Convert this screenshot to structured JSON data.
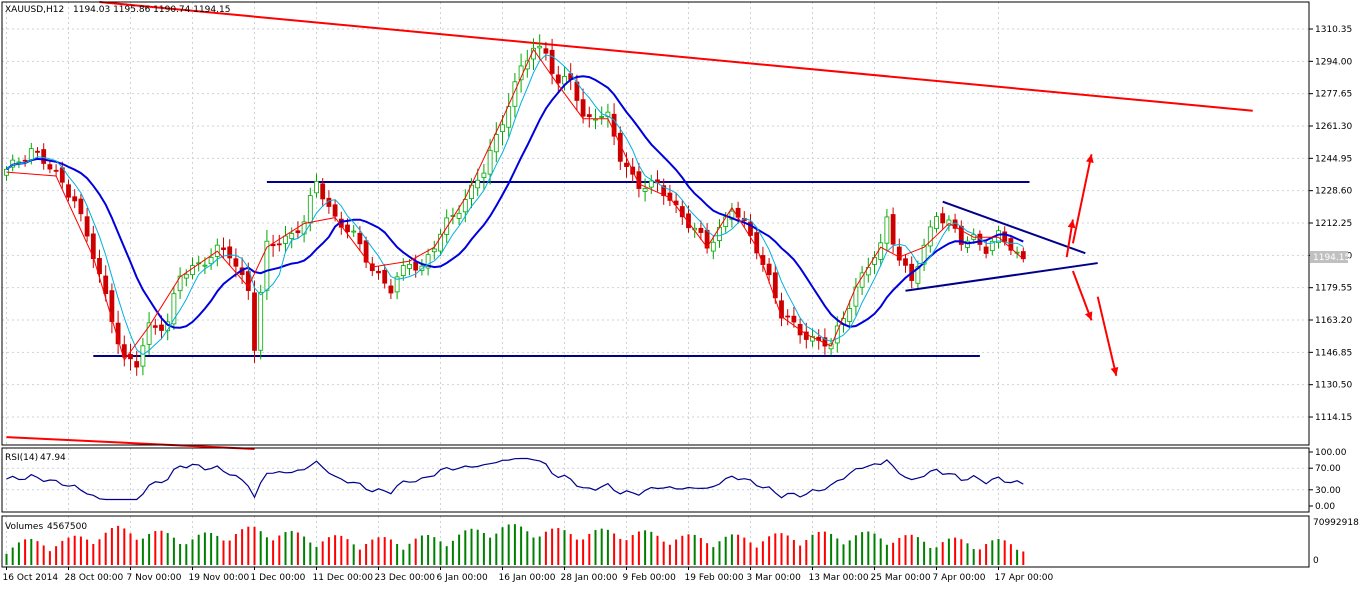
{
  "chart_data": {
    "type": "candlestick",
    "symbol": "XAUUSD,H12",
    "ohlc_text": "1194.03 1195.86 1190.74 1194.15",
    "last_price": "1194.15",
    "price_axis": {
      "min": 1100,
      "max": 1324,
      "ticks": [
        "1310.35",
        "1294.00",
        "1277.65",
        "1261.30",
        "1244.95",
        "1228.60",
        "1212.25",
        "1195.90",
        "1179.55",
        "1163.20",
        "1146.85",
        "1130.50",
        "1114.15"
      ],
      "tick_values": [
        1310.35,
        1294.0,
        1277.65,
        1261.3,
        1244.95,
        1228.6,
        1212.25,
        1195.9,
        1179.55,
        1163.2,
        1146.85,
        1130.5,
        1114.15
      ]
    },
    "time_axis": {
      "labels": [
        "16 Oct 2014",
        "28 Oct 00:00",
        "7 Nov 00:00",
        "19 Nov 00:00",
        "1 Dec 00:00",
        "11 Dec 00:00",
        "23 Dec 00:00",
        "6 Jan 00:00",
        "16 Jan 00:00",
        "28 Jan 00:00",
        "9 Feb 00:00",
        "19 Feb 00:00",
        "3 Mar 00:00",
        "13 Mar 00:00",
        "25 Mar 00:00",
        "7 Apr 00:00",
        "17 Apr 00:00"
      ],
      "label_bar_index": [
        0,
        10,
        20,
        30,
        40,
        50,
        60,
        70,
        80,
        90,
        100,
        110,
        120,
        130,
        140,
        150,
        160
      ]
    },
    "price_series": {
      "name": "close",
      "anchors": [
        [
          0,
          1238
        ],
        [
          4,
          1250
        ],
        [
          8,
          1236
        ],
        [
          11,
          1225
        ],
        [
          14,
          1195
        ],
        [
          17,
          1165
        ],
        [
          19,
          1143
        ],
        [
          21,
          1140
        ],
        [
          23,
          1160
        ],
        [
          26,
          1162
        ],
        [
          28,
          1185
        ],
        [
          31,
          1192
        ],
        [
          34,
          1198
        ],
        [
          36,
          1196
        ],
        [
          39,
          1180
        ],
        [
          40,
          1150
        ],
        [
          42,
          1200
        ],
        [
          45,
          1205
        ],
        [
          48,
          1212
        ],
        [
          50,
          1233
        ],
        [
          53,
          1215
        ],
        [
          56,
          1205
        ],
        [
          59,
          1190
        ],
        [
          62,
          1178
        ],
        [
          65,
          1193
        ],
        [
          67,
          1190
        ],
        [
          69,
          1200
        ],
        [
          71,
          1212
        ],
        [
          74,
          1225
        ],
        [
          77,
          1238
        ],
        [
          80,
          1265
        ],
        [
          83,
          1290
        ],
        [
          85,
          1300
        ],
        [
          87,
          1300
        ],
        [
          89,
          1282
        ],
        [
          91,
          1285
        ],
        [
          93,
          1265
        ],
        [
          95,
          1268
        ],
        [
          97,
          1265
        ],
        [
          99,
          1245
        ],
        [
          102,
          1232
        ],
        [
          105,
          1230
        ],
        [
          107,
          1225
        ],
        [
          110,
          1212
        ],
        [
          113,
          1200
        ],
        [
          115,
          1210
        ],
        [
          117,
          1220
        ],
        [
          119,
          1210
        ],
        [
          121,
          1200
        ],
        [
          123,
          1185
        ],
        [
          125,
          1165
        ],
        [
          127,
          1160
        ],
        [
          129,
          1156
        ],
        [
          131,
          1152
        ],
        [
          133,
          1150
        ],
        [
          135,
          1165
        ],
        [
          137,
          1180
        ],
        [
          139,
          1190
        ],
        [
          141,
          1200
        ],
        [
          142,
          1215
        ],
        [
          144,
          1195
        ],
        [
          146,
          1182
        ],
        [
          148,
          1200
        ],
        [
          150,
          1218
        ],
        [
          152,
          1212
        ],
        [
          154,
          1202
        ],
        [
          156,
          1205
        ],
        [
          158,
          1200
        ],
        [
          160,
          1205
        ],
        [
          162,
          1200
        ],
        [
          164,
          1194
        ]
      ]
    },
    "volatility": [
      [
        0,
        4
      ],
      [
        10,
        5
      ],
      [
        18,
        9
      ],
      [
        30,
        6
      ],
      [
        40,
        9
      ],
      [
        50,
        6
      ],
      [
        60,
        5
      ],
      [
        70,
        6
      ],
      [
        80,
        10
      ],
      [
        90,
        8
      ],
      [
        100,
        8
      ],
      [
        110,
        6
      ],
      [
        120,
        6
      ],
      [
        130,
        7
      ],
      [
        140,
        7
      ],
      [
        150,
        5
      ],
      [
        164,
        4
      ]
    ],
    "indicators": [
      {
        "name": "moving-average",
        "color": "#0000dd",
        "period": 13,
        "style": "thick"
      },
      {
        "name": "moving-average",
        "color": "#00b0e0",
        "period": 5,
        "style": "thin"
      },
      {
        "name": "zigzag",
        "color": "#ff0000"
      }
    ],
    "trend_lines": [
      {
        "name": "upper-red-trendline",
        "color": "#ff0000",
        "points": [
          [
            15,
            1324
          ],
          [
            201,
            1269
          ]
        ]
      },
      {
        "name": "lower-red-trendline",
        "color": "#ff0000",
        "points": [
          [
            0,
            1104
          ],
          [
            40,
            1098
          ]
        ]
      },
      {
        "name": "resistance-line",
        "color": "#00008b",
        "points": [
          [
            42,
            1233
          ],
          [
            165,
            1233
          ]
        ]
      },
      {
        "name": "support-line",
        "color": "#00008b",
        "points": [
          [
            14,
            1145
          ],
          [
            157,
            1145
          ]
        ]
      },
      {
        "name": "triangle-upper-line",
        "color": "#00008b",
        "points": [
          [
            151,
            1223
          ],
          [
            174,
            1197
          ]
        ]
      },
      {
        "name": "triangle-lower-line",
        "color": "#00008b",
        "points": [
          [
            145,
            1178
          ],
          [
            176,
            1192
          ]
        ]
      }
    ],
    "arrows": [
      {
        "name": "arrow-up-large",
        "color": "#ff0000",
        "from": [
          172,
          1202
        ],
        "to": [
          175,
          1247
        ]
      },
      {
        "name": "arrow-up-small",
        "color": "#ff0000",
        "from": [
          171,
          1195
        ],
        "to": [
          172,
          1214
        ]
      },
      {
        "name": "arrow-down-small",
        "color": "#ff0000",
        "from": [
          172,
          1188
        ],
        "to": [
          175,
          1163
        ]
      },
      {
        "name": "arrow-down-large",
        "color": "#ff0000",
        "from": [
          176,
          1175
        ],
        "to": [
          179,
          1135
        ]
      }
    ],
    "rsi": {
      "label": "RSI(14)",
      "value_text": "47.94",
      "min": 0,
      "max": 100,
      "ticks": [
        "100.00",
        "70.00",
        "30.00",
        "0.00"
      ],
      "tick_values": [
        100,
        70,
        30,
        0
      ],
      "color": "#00008b"
    },
    "volumes": {
      "label": "Volumes",
      "value_text": "4567500",
      "max_tick": "70992918",
      "min_tick": "0",
      "colors": {
        "up": "#008000",
        "down": "#ff0000"
      }
    },
    "colors": {
      "bull_candle": "#00aa00",
      "bear_candle": "#cc0000",
      "grid": "#cdd3da",
      "axis": "#000000",
      "price_tag_bg": "#c0c0c0"
    },
    "grid": true
  }
}
